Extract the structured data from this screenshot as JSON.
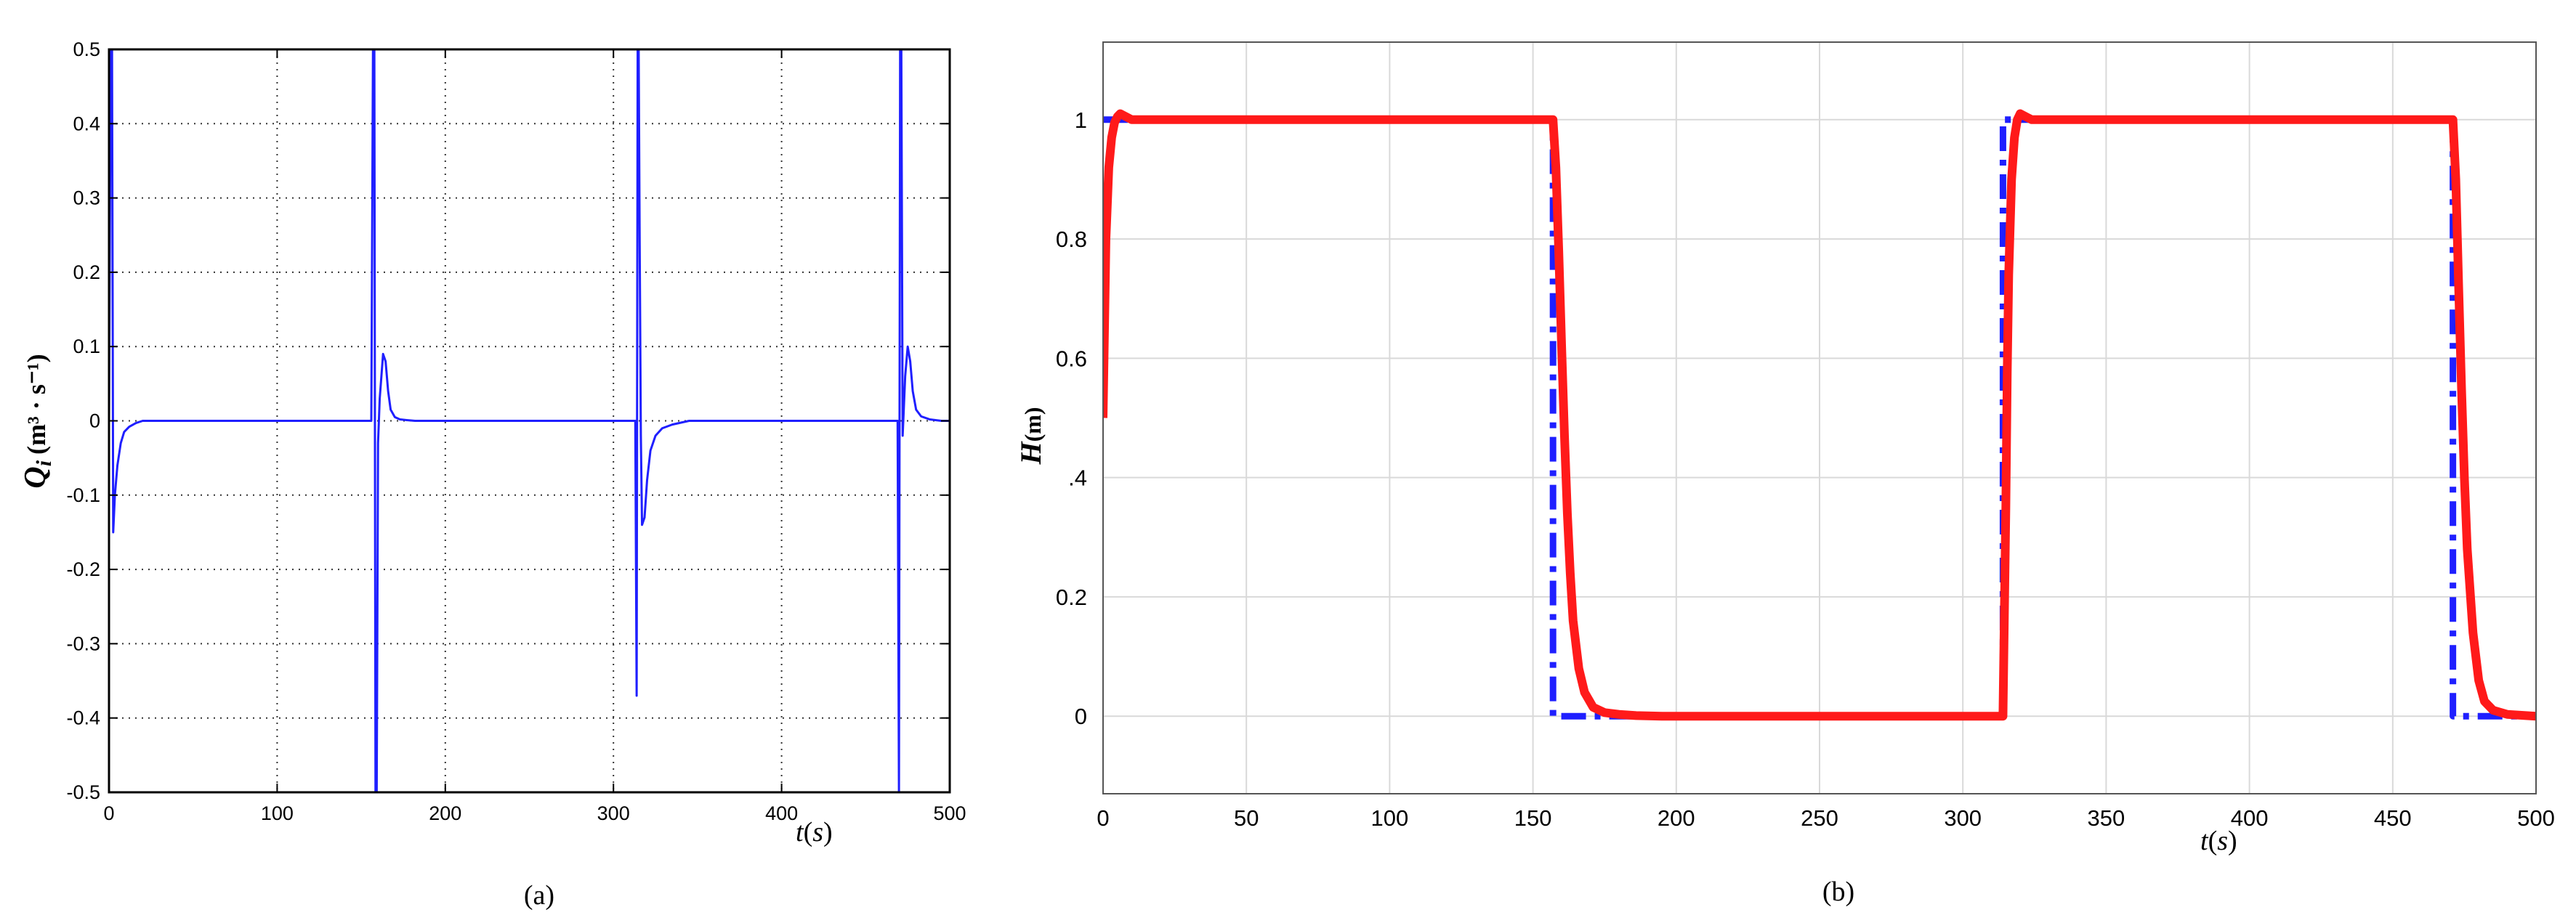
{
  "chart_data": [
    {
      "type": "line",
      "caption": "(a)",
      "ylabel": "Qi (m³ · s⁻¹)",
      "ylabel_parts": {
        "symbol": "Q",
        "subscript": "i",
        "units": "(m³ · s⁻¹)"
      },
      "xlabel": "t(s)",
      "xlabel_parts": {
        "symbol": "t",
        "open": "(",
        "var": "s",
        "close": ")"
      },
      "xlim": [
        0,
        500
      ],
      "ylim": [
        -0.5,
        0.5
      ],
      "xticks": [
        "0",
        "100",
        "200",
        "300",
        "400",
        "500"
      ],
      "yticks": [
        "0.5",
        "0.4",
        "0.3",
        "0.2",
        "0.1",
        "0",
        "-0.1",
        "-0.2",
        "-0.3",
        "-0.4",
        "-0.5"
      ],
      "grid": "dotted",
      "series": [
        {
          "color": "#1f1fff",
          "x": [
            0,
            1,
            1.8,
            2.5,
            3.5,
            5,
            7,
            9,
            12,
            16,
            20,
            40,
            80,
            120,
            150,
            156,
            157,
            157.8,
            158.5,
            159.2,
            160,
            161,
            163,
            164.5,
            166,
            167.5,
            170,
            173,
            177,
            182,
            190,
            220,
            260,
            300,
            312,
            313,
            313.8,
            314.4,
            315,
            315.6,
            316.3,
            317,
            318.5,
            320,
            322,
            325,
            329,
            335,
            345,
            380,
            420,
            460,
            468,
            469,
            469.8,
            470.5,
            471.2,
            472,
            473.5,
            475,
            476.5,
            478,
            480,
            483,
            488,
            495,
            500
          ],
          "y": [
            0,
            0.5,
            0.5,
            -0.15,
            -0.1,
            -0.06,
            -0.03,
            -0.015,
            -0.008,
            -0.003,
            0,
            0,
            0,
            0,
            0,
            0,
            0.5,
            0.5,
            -0.5,
            -0.5,
            -0.03,
            0.03,
            0.09,
            0.08,
            0.04,
            0.015,
            0.005,
            0.002,
            0.001,
            0,
            0,
            0,
            0,
            0,
            0,
            0,
            -0.37,
            0.5,
            0.5,
            0.24,
            -0.02,
            -0.14,
            -0.13,
            -0.08,
            -0.04,
            -0.02,
            -0.01,
            -0.005,
            0,
            0,
            0,
            0,
            0,
            0,
            -0.5,
            0.5,
            0.5,
            -0.02,
            0.06,
            0.1,
            0.08,
            0.04,
            0.015,
            0.006,
            0.002,
            0,
            0
          ]
        }
      ]
    },
    {
      "type": "line",
      "caption": "(b)",
      "ylabel": "H(m)",
      "ylabel_parts": {
        "symbol": "H",
        "units": "(m)"
      },
      "xlabel": "t(s)",
      "xlabel_parts": {
        "symbol": "t",
        "open": "(",
        "var": "s",
        "close": ")"
      },
      "xlim": [
        0,
        500
      ],
      "ylim": [
        -0.13,
        1.13
      ],
      "xticks": [
        0,
        50,
        100,
        150,
        200,
        250,
        300,
        350,
        400,
        450,
        500
      ],
      "yticks": [
        0,
        0.2,
        0.4,
        0.6,
        0.8,
        1
      ],
      "ytick_labels": [
        "0",
        "0.2",
        ".4",
        "0.6",
        "0.8",
        "1"
      ],
      "grid": "solid-light",
      "series": [
        {
          "style": "dash-dot",
          "color": "#1f1fff",
          "x": [
            0,
            157,
            157,
            314,
            314,
            471,
            471,
            500
          ],
          "y": [
            1,
            1,
            0,
            0,
            1,
            1,
            0,
            0
          ]
        },
        {
          "style": "solid",
          "color": "#ff1a1a",
          "x": [
            0,
            1,
            2,
            3,
            4,
            5,
            6,
            8,
            10,
            157,
            158,
            159,
            160,
            161,
            162,
            163,
            164,
            166,
            168,
            171,
            175,
            180,
            186,
            195,
            314,
            315,
            315.5,
            316,
            317,
            318,
            319,
            320,
            322,
            324,
            471,
            472,
            473,
            474,
            475,
            476,
            478,
            480,
            482,
            485,
            490,
            500
          ],
          "y": [
            0.5,
            0.8,
            0.92,
            0.97,
            0.995,
            1.005,
            1.01,
            1.005,
            1.0,
            1.0,
            0.92,
            0.78,
            0.62,
            0.47,
            0.34,
            0.24,
            0.16,
            0.08,
            0.04,
            0.015,
            0.006,
            0.003,
            0.001,
            0,
            0,
            0.35,
            0.58,
            0.74,
            0.9,
            0.97,
            1.0,
            1.01,
            1.005,
            1.0,
            1.0,
            0.9,
            0.72,
            0.55,
            0.4,
            0.28,
            0.14,
            0.06,
            0.025,
            0.01,
            0.003,
            0
          ]
        }
      ]
    }
  ]
}
